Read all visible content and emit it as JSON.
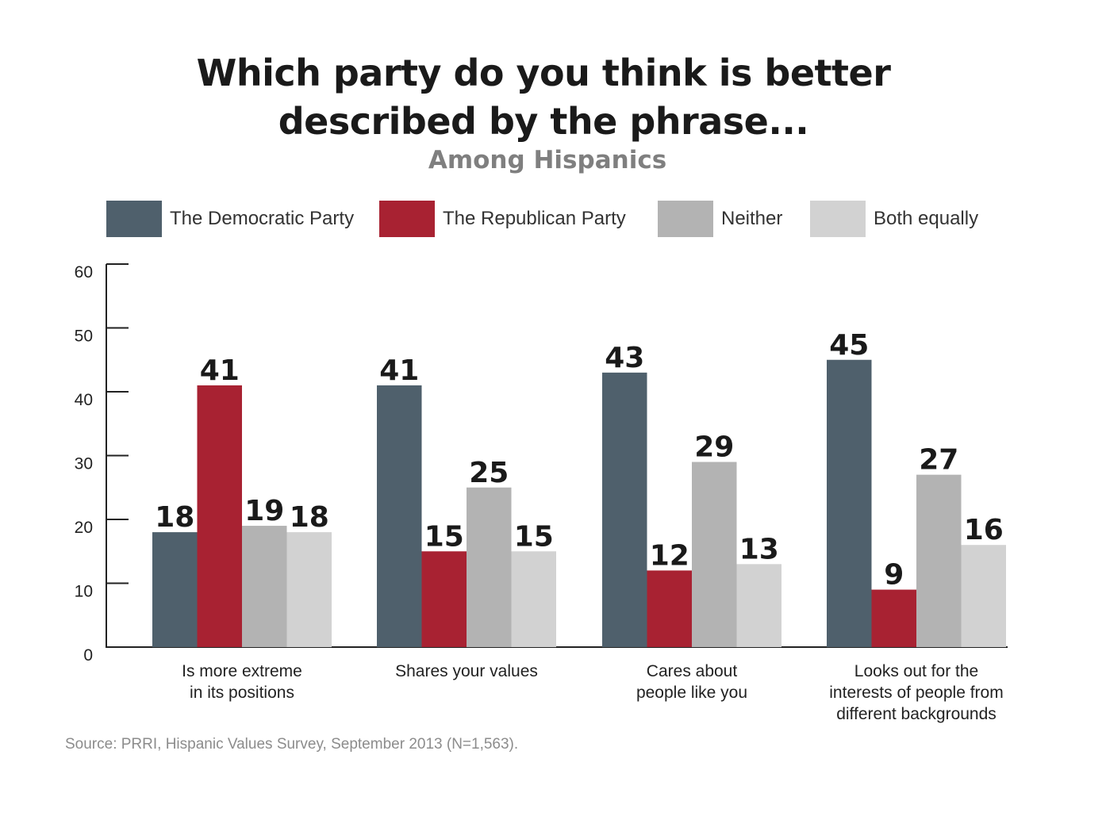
{
  "title_lines": [
    "Which party do you think is better",
    "described by the phrase..."
  ],
  "subtitle": "Among Hispanics",
  "source": "Source: PRRI, Hispanic Values Survey, September 2013 (N=1,563).",
  "chart_data": {
    "type": "bar",
    "categories": [
      [
        "Is more extreme",
        "in its positions"
      ],
      [
        "Shares your values"
      ],
      [
        "Cares about",
        "people like you"
      ],
      [
        "Looks out for the",
        "interests of people from",
        "different backgrounds"
      ]
    ],
    "series": [
      {
        "name": "The Democratic Party",
        "color": "#4f606c",
        "values": [
          18,
          41,
          43,
          45
        ]
      },
      {
        "name": "The Republican Party",
        "color": "#a82232",
        "values": [
          41,
          15,
          12,
          9
        ]
      },
      {
        "name": "Neither",
        "color": "#b3b3b3",
        "values": [
          19,
          25,
          29,
          27
        ]
      },
      {
        "name": "Both equally",
        "color": "#d2d2d2",
        "values": [
          18,
          15,
          13,
          16
        ]
      }
    ],
    "yticks": [
      0,
      10,
      20,
      30,
      40,
      50,
      60
    ],
    "ylim": [
      0,
      60
    ],
    "grid": false,
    "legend": "top"
  }
}
